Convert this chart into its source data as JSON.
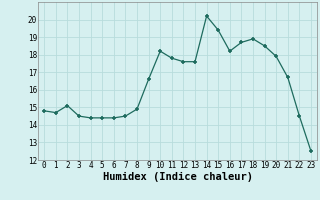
{
  "x": [
    0,
    1,
    2,
    3,
    4,
    5,
    6,
    7,
    8,
    9,
    10,
    11,
    12,
    13,
    14,
    15,
    16,
    17,
    18,
    19,
    20,
    21,
    22,
    23
  ],
  "y": [
    14.8,
    14.7,
    15.1,
    14.5,
    14.4,
    14.4,
    14.4,
    14.5,
    14.9,
    16.6,
    18.2,
    17.8,
    17.6,
    17.6,
    20.2,
    19.4,
    18.2,
    18.7,
    18.9,
    18.5,
    17.9,
    16.7,
    14.5,
    12.5
  ],
  "xlabel": "Humidex (Indice chaleur)",
  "ylim": [
    12,
    21
  ],
  "xlim_min": -0.5,
  "xlim_max": 23.5,
  "yticks": [
    12,
    13,
    14,
    15,
    16,
    17,
    18,
    19,
    20
  ],
  "xticks": [
    0,
    1,
    2,
    3,
    4,
    5,
    6,
    7,
    8,
    9,
    10,
    11,
    12,
    13,
    14,
    15,
    16,
    17,
    18,
    19,
    20,
    21,
    22,
    23
  ],
  "line_color": "#1e6b5e",
  "marker_color": "#1e6b5e",
  "bg_color": "#d6f0f0",
  "grid_color": "#b8dcdc",
  "tick_fontsize": 5.5,
  "xlabel_fontsize": 7.5,
  "xlabel_fontweight": "bold"
}
